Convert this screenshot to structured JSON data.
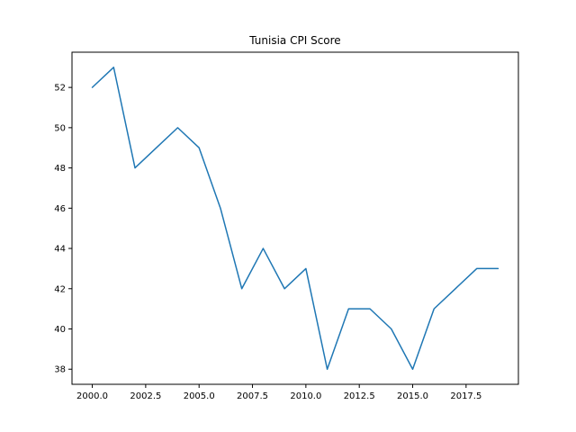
{
  "chart_data": {
    "type": "line",
    "title": "Tunisia CPI Score",
    "xlabel": "",
    "ylabel": "",
    "x": [
      2000,
      2001,
      2002,
      2003,
      2004,
      2005,
      2006,
      2007,
      2008,
      2009,
      2010,
      2011,
      2012,
      2013,
      2014,
      2015,
      2016,
      2017,
      2018,
      2019
    ],
    "series": [
      {
        "values": [
          52,
          53,
          48,
          49,
          50,
          49,
          46,
          42,
          44,
          42,
          43,
          38,
          41,
          41,
          40,
          38,
          41,
          42,
          43,
          43
        ],
        "color": "#1f77b4"
      }
    ],
    "xlim": [
      1999.05,
      2019.95
    ],
    "ylim": [
      37.25,
      53.75
    ],
    "xticks": [
      "2000.0",
      "2002.5",
      "2005.0",
      "2007.5",
      "2010.0",
      "2012.5",
      "2015.0",
      "2017.5"
    ],
    "yticks": [
      "38",
      "40",
      "42",
      "44",
      "46",
      "48",
      "50",
      "52"
    ],
    "grid": false,
    "legend": "none"
  }
}
